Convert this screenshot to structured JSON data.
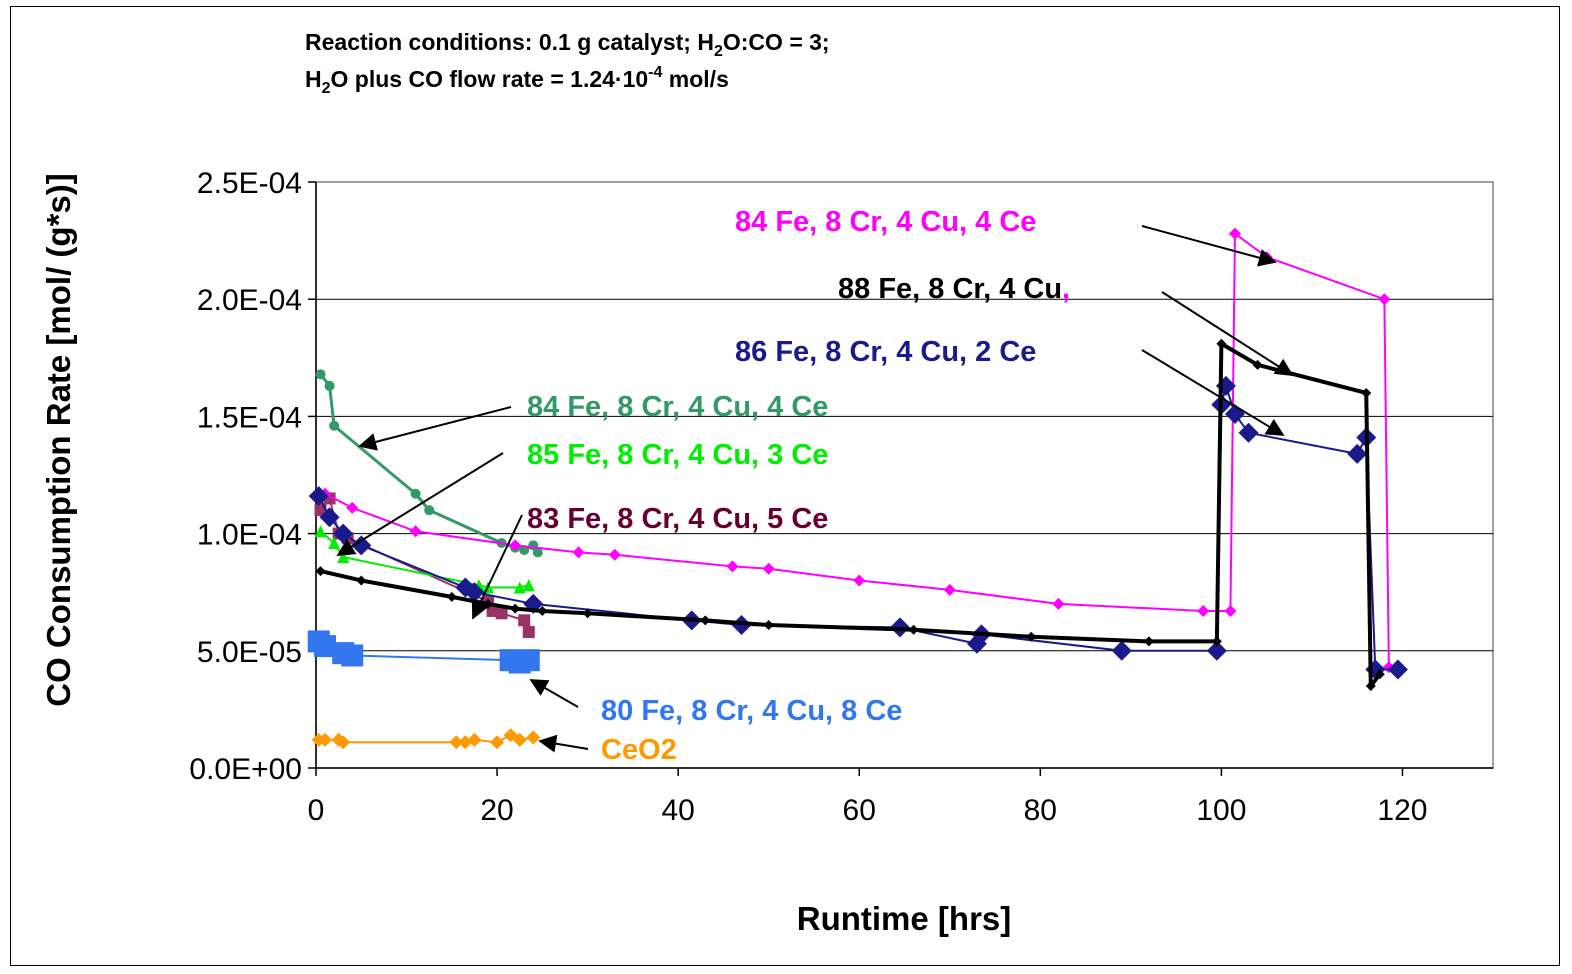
{
  "chart_data": {
    "type": "scatter",
    "conditions": {
      "line1_prefix": "Reaction conditions:  0.1 g catalyst; H",
      "line1_sub1": "2",
      "line1_mid": "O:CO = 3;",
      "line2_prefix": "H",
      "line2_sub1": "2",
      "line2_mid": "O plus CO flow rate = 1.24·10",
      "line2_sup": "-4",
      "line2_suffix": " mol/s"
    },
    "xlabel": "Runtime [hrs]",
    "ylabel": "CO Consumption Rate [mol/ (g*s)]",
    "xlim": [
      0,
      130
    ],
    "ylim": [
      0,
      0.00025
    ],
    "x_ticks": [
      0,
      20,
      40,
      60,
      80,
      100,
      120
    ],
    "x_tick_labels": [
      "0",
      "20",
      "40",
      "60",
      "80",
      "100",
      "120"
    ],
    "y_ticks": [
      0,
      5e-05,
      0.0001,
      0.00015,
      0.0002,
      0.00025
    ],
    "y_tick_labels": [
      "0.0E+00",
      "5.0E-05",
      "1.0E-04",
      "1.5E-04",
      "2.0E-04",
      "2.5E-04"
    ],
    "grid": "horizontal",
    "series": [
      {
        "name": "84 Fe,  8 Cr, 4 Cu, 4 Ce",
        "color": "#ff00ff",
        "marker": "diamond",
        "x": [
          1,
          4,
          11,
          22,
          29,
          33,
          46,
          50,
          60,
          70,
          82,
          98,
          101,
          101.5,
          105,
          118,
          118.5
        ],
        "y": [
          0.000117,
          0.000111,
          0.000101,
          9.5e-05,
          9.2e-05,
          9.1e-05,
          8.6e-05,
          8.5e-05,
          8e-05,
          7.6e-05,
          7e-05,
          6.7e-05,
          6.7e-05,
          0.000228,
          0.000218,
          0.0002,
          4.3e-05
        ]
      },
      {
        "name": "88 Fe,  8 Cr, 4 Cu",
        "color": "#000000",
        "marker": "diamond",
        "x": [
          0.5,
          5,
          15,
          19,
          22,
          25,
          30,
          43,
          50,
          66,
          79,
          92,
          99.5,
          100,
          104,
          116,
          116.5,
          117.5
        ],
        "y": [
          8.4e-05,
          8e-05,
          7.3e-05,
          7e-05,
          6.8e-05,
          6.7e-05,
          6.6e-05,
          6.3e-05,
          6.1e-05,
          5.9e-05,
          5.6e-05,
          5.4e-05,
          5.4e-05,
          0.000181,
          0.000172,
          0.00016,
          3.5e-05,
          4e-05
        ]
      },
      {
        "name": "86 Fe,  8 Cr, 4 Cu, 2 Ce",
        "color": "#1a1a8c",
        "marker": "diamond",
        "x": [
          0.3,
          1.5,
          3,
          5,
          16.5,
          17.5,
          24,
          41.5,
          47,
          64.5,
          73,
          73.5,
          89,
          99.5,
          100,
          100.5,
          101.5,
          103,
          115,
          116,
          117,
          119.5
        ],
        "y": [
          0.000116,
          0.000107,
          0.0001,
          9.5e-05,
          7.7e-05,
          7.5e-05,
          7e-05,
          6.3e-05,
          6.1e-05,
          6e-05,
          5.3e-05,
          5.7e-05,
          5e-05,
          5e-05,
          0.000155,
          0.000163,
          0.000151,
          0.000143,
          0.000134,
          0.000141,
          4.2e-05,
          4.2e-05
        ]
      },
      {
        "name": "84 Fe,  8 Cr, 4 Cu, 4 Ce",
        "color": "#339966",
        "marker": "circle",
        "x": [
          0.5,
          1.5,
          2,
          11,
          12.5,
          20.5,
          22,
          23,
          24,
          24.5
        ],
        "y": [
          0.000168,
          0.000163,
          0.000146,
          0.000117,
          0.00011,
          9.6e-05,
          9.4e-05,
          9.3e-05,
          9.5e-05,
          9.2e-05
        ]
      },
      {
        "name": "85 Fe,  8 Cr, 4 Cu, 3 Ce",
        "color": "#00ee00",
        "marker": "triangle",
        "x": [
          0.5,
          2,
          3,
          18,
          19,
          22.5,
          23.5
        ],
        "y": [
          0.000101,
          9.6e-05,
          9e-05,
          7.8e-05,
          7.7e-05,
          7.7e-05,
          7.8e-05
        ]
      },
      {
        "name": "83 Fe,  8 Cr, 4 Cu, 5 Ce",
        "color": "#993366",
        "marker": "square",
        "x": [
          0.5,
          1.5,
          2.5,
          3.5,
          19,
          19.5,
          20.5,
          23,
          23.5
        ],
        "y": [
          0.00011,
          0.000115,
          0.0001,
          9.8e-05,
          7.1e-05,
          6.7e-05,
          6.6e-05,
          6.3e-05,
          5.8e-05
        ]
      },
      {
        "name": "80 Fe,  8 Cr, 4 Cu, 8 Ce",
        "color": "#3377ee",
        "marker": "square",
        "x": [
          0.3,
          1,
          3,
          4,
          21.5,
          22.5,
          23.5
        ],
        "y": [
          5.4e-05,
          5.2e-05,
          4.9e-05,
          4.8e-05,
          4.6e-05,
          4.5e-05,
          4.6e-05
        ]
      },
      {
        "name": "CeO2",
        "color": "#ff9900",
        "marker": "diamond",
        "x": [
          0.3,
          1,
          2.5,
          3,
          15.5,
          16.5,
          17.5,
          20,
          21.5,
          22.5,
          24
        ],
        "y": [
          1.2e-05,
          1.2e-05,
          1.2e-05,
          1.1e-05,
          1.1e-05,
          1.1e-05,
          1.2e-05,
          1.1e-05,
          1.4e-05,
          1.2e-05,
          1.3e-05
        ]
      }
    ],
    "annotations": [
      {
        "text": "84 Fe,  8 Cr, 4 Cu, 4 Ce",
        "color": "#ff00ff",
        "series": 0
      },
      {
        "text": "88 Fe,  8 Cr, 4 Cu",
        "text_tail": ",",
        "color": "#000000",
        "tail_color": "#ff00ff",
        "series": 1
      },
      {
        "text": "86 Fe,  8 Cr, 4 Cu, 2 Ce",
        "color": "#1a1a8c",
        "series": 2
      },
      {
        "text": "84 Fe,  8 Cr, 4 Cu, 4 Ce",
        "color": "#339966",
        "series": 3
      },
      {
        "text": "85 Fe,  8 Cr, 4 Cu, 3 Ce",
        "color": "#00ee00",
        "series": 4
      },
      {
        "text": "83 Fe,  8 Cr, 4 Cu, 5 Ce",
        "color": "#660033",
        "series": 5
      },
      {
        "text": "80 Fe,  8 Cr, 4 Cu, 8 Ce",
        "color": "#3377ee",
        "series": 6
      },
      {
        "text": "CeO2",
        "color": "#ff9900",
        "series": 7
      }
    ]
  }
}
